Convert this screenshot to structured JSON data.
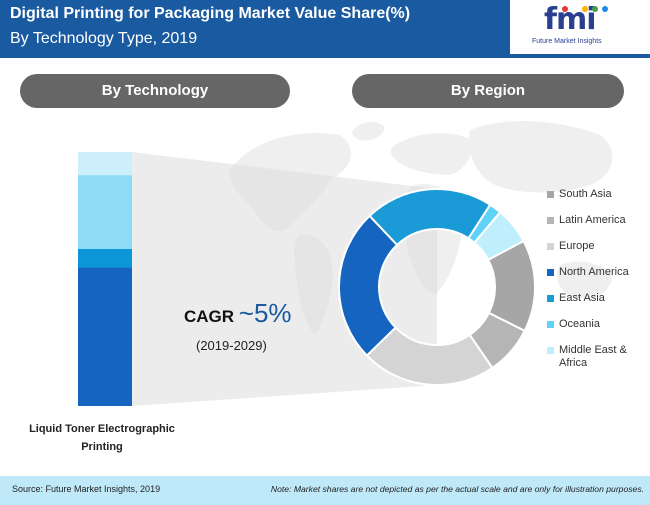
{
  "header": {
    "title": "Digital Printing for Packaging Market Value Share(%)",
    "subtitle": "By Technology Type, 2019",
    "logo": {
      "text": "fmi",
      "tagline": "Future Market Insights",
      "dot_colors": [
        "#e53935",
        "#ffb300",
        "#43a047",
        "#1e88e5"
      ]
    }
  },
  "sections": {
    "technology": "By Technology",
    "region": "By Region"
  },
  "cagr": {
    "label": "CAGR ",
    "value": "~5%",
    "period": "(2019-2029)"
  },
  "chart_data": [
    {
      "type": "bar",
      "stacked": true,
      "categories": [
        "Liquid Toner Electrographic Printing"
      ],
      "series": [
        {
          "values": [
            60
          ],
          "color": "#1565c0"
        },
        {
          "values": [
            8
          ],
          "color": "#0b96d8"
        },
        {
          "values": [
            32
          ],
          "color": "#8fdcf8"
        },
        {
          "values": [
            10
          ],
          "color": "#cdeefb"
        }
      ],
      "ylim": [
        0,
        110
      ]
    },
    {
      "type": "pie",
      "donut": true,
      "labels": [
        "South Asia",
        "Latin America",
        "Europe",
        "North America",
        "East Asia",
        "Oceania",
        "Middle East & Africa"
      ],
      "values": [
        15,
        8,
        22,
        25,
        21,
        2,
        6
      ],
      "colors": [
        "#a6a6a6",
        "#b5b5b5",
        "#d4d4d4",
        "#1565c0",
        "#1a9ad6",
        "#5ed2f7",
        "#bfeefc"
      ]
    }
  ],
  "footer": {
    "source": "Source: Future Market Insights, 2019",
    "note": "Note: Market shares are not depicted as per the actual scale and are only for illustration purposes."
  }
}
